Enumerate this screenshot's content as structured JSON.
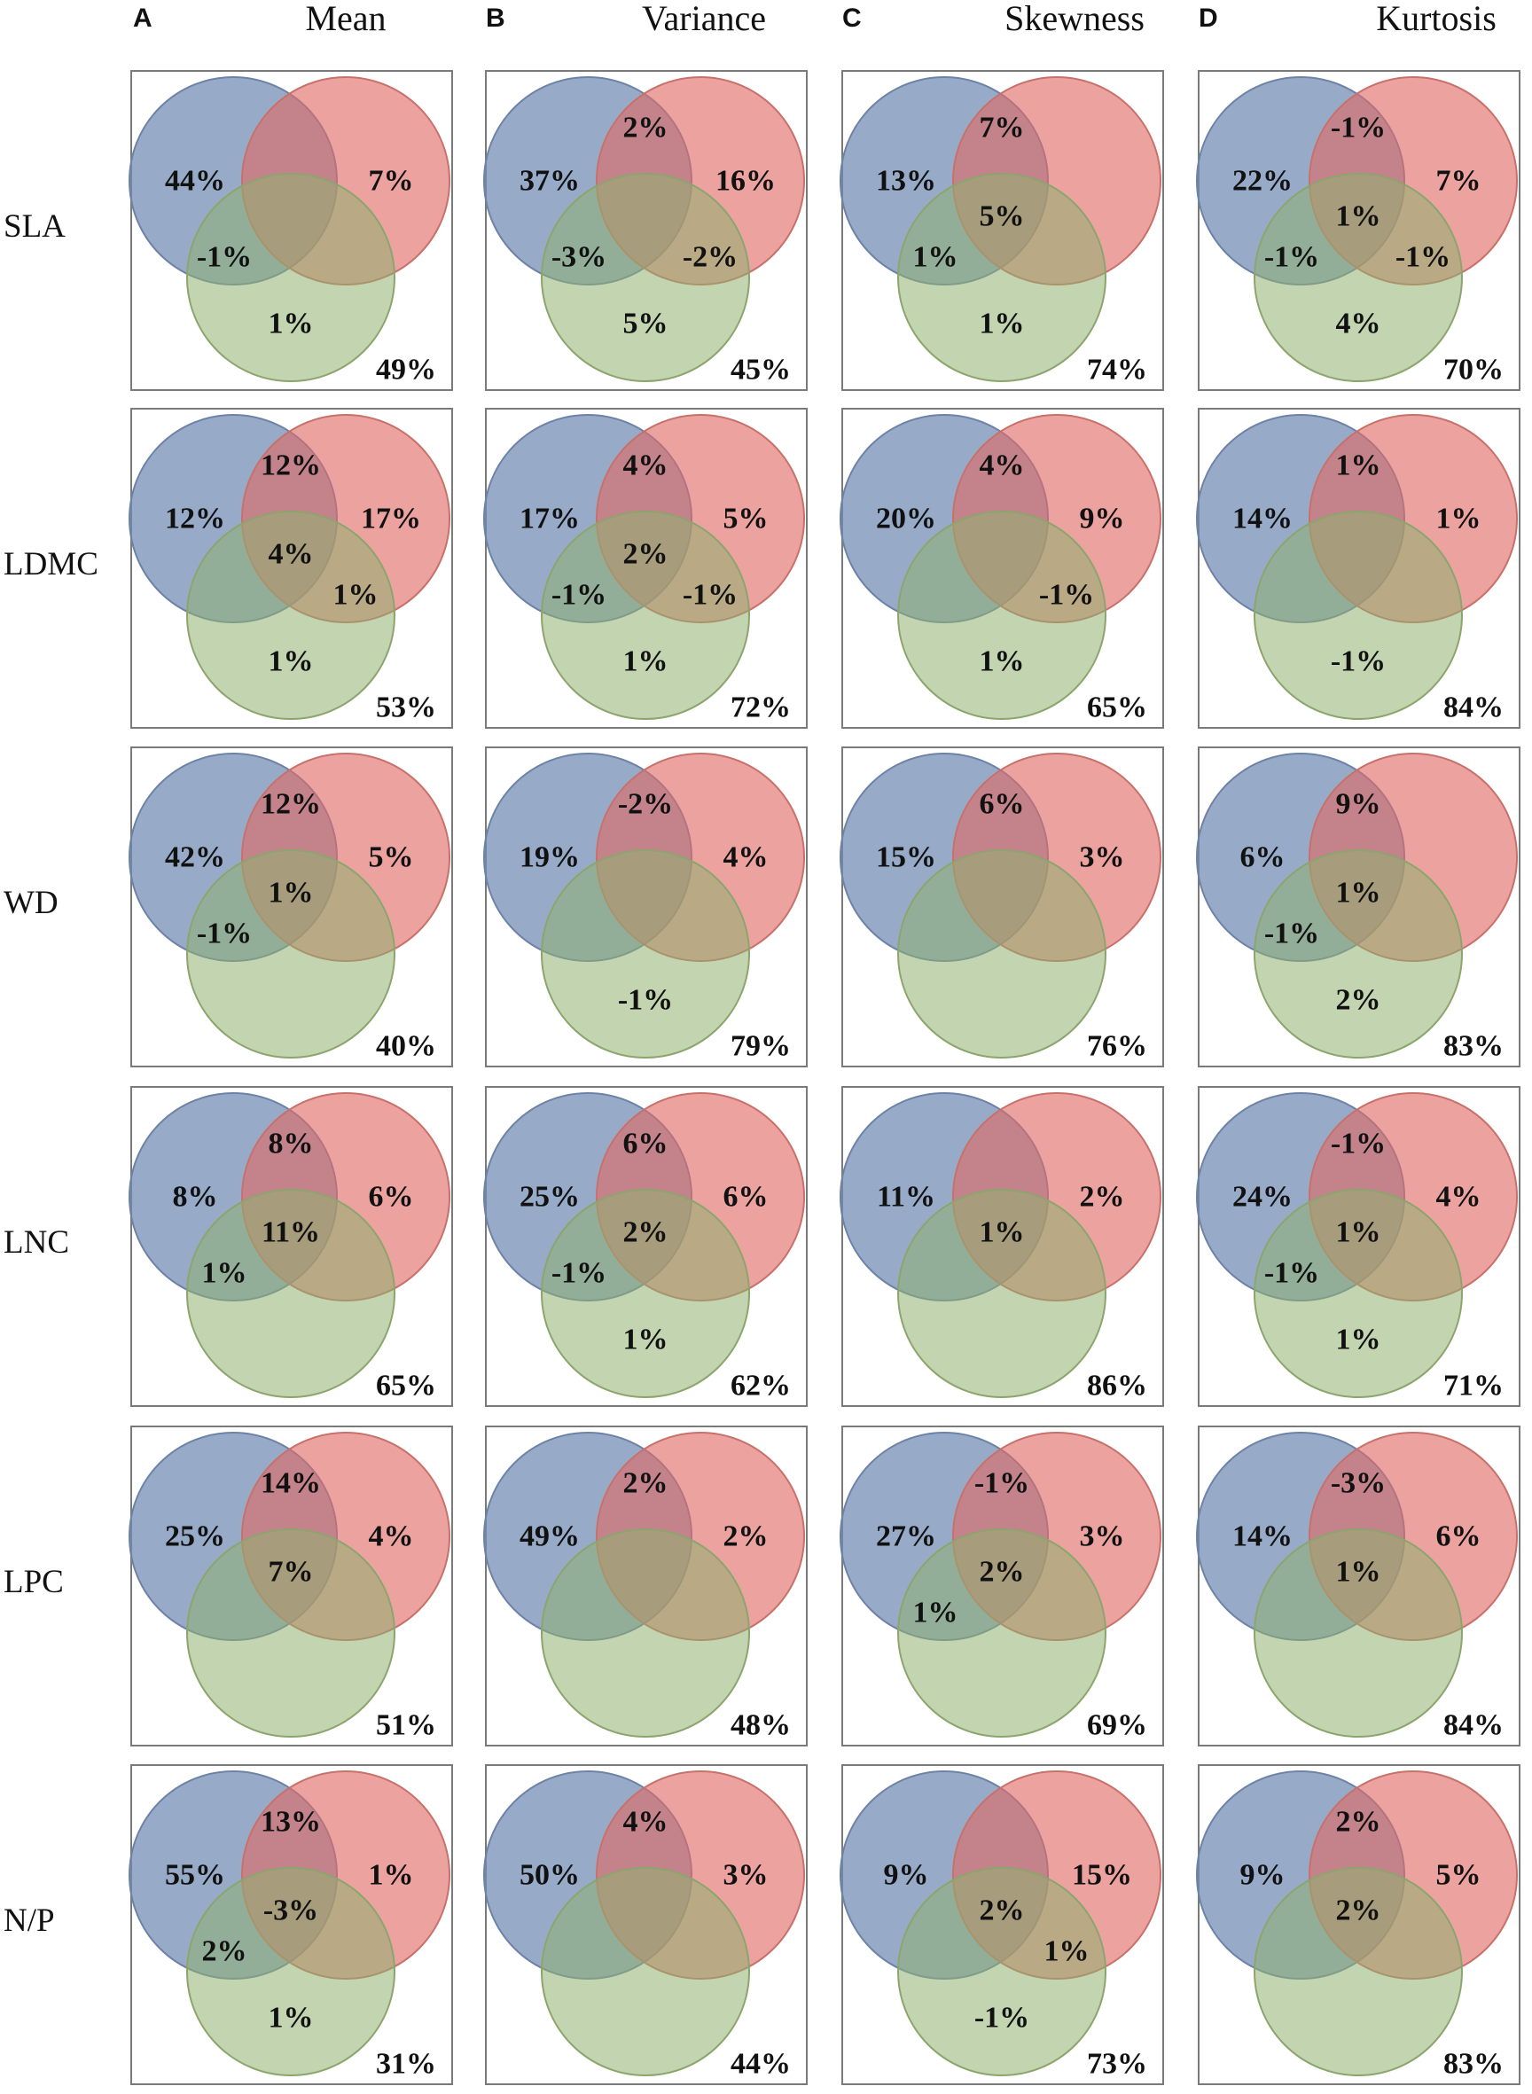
{
  "colors": {
    "blue": "#6f8ab4",
    "red": "#e06a66",
    "green": "#8fb170",
    "blue_stroke": "#6d82a6",
    "red_stroke": "#c8706a",
    "green_stroke": "#8ba56d"
  },
  "columns": [
    {
      "letter": "A",
      "title": "Mean"
    },
    {
      "letter": "B",
      "title": "Variance"
    },
    {
      "letter": "C",
      "title": "Skewness"
    },
    {
      "letter": "D",
      "title": "Kurtosis"
    }
  ],
  "rows": [
    "SLA",
    "LDMC",
    "WD",
    "LNC",
    "LPC",
    "N/P"
  ],
  "cells": [
    [
      {
        "blue_only": "44%",
        "red_only": "7%",
        "blue_red": "",
        "center": "",
        "blue_green": "-1%",
        "red_green": "",
        "green_only": "1%",
        "residual": "49%"
      },
      {
        "blue_only": "37%",
        "red_only": "16%",
        "blue_red": "2%",
        "center": "",
        "blue_green": "-3%",
        "red_green": "-2%",
        "green_only": "5%",
        "residual": "45%"
      },
      {
        "blue_only": "13%",
        "red_only": "",
        "blue_red": "7%",
        "center": "5%",
        "blue_green": "1%",
        "red_green": "",
        "green_only": "1%",
        "residual": "74%"
      },
      {
        "blue_only": "22%",
        "red_only": "7%",
        "blue_red": "-1%",
        "center": "1%",
        "blue_green": "-1%",
        "red_green": "-1%",
        "green_only": "4%",
        "residual": "70%"
      }
    ],
    [
      {
        "blue_only": "12%",
        "red_only": "17%",
        "blue_red": "12%",
        "center": "4%",
        "blue_green": "",
        "red_green": "1%",
        "green_only": "1%",
        "residual": "53%"
      },
      {
        "blue_only": "17%",
        "red_only": "5%",
        "blue_red": "4%",
        "center": "2%",
        "blue_green": "-1%",
        "red_green": "-1%",
        "green_only": "1%",
        "residual": "72%"
      },
      {
        "blue_only": "20%",
        "red_only": "9%",
        "blue_red": "4%",
        "center": "",
        "blue_green": "",
        "red_green": "-1%",
        "green_only": "1%",
        "residual": "65%"
      },
      {
        "blue_only": "14%",
        "red_only": "1%",
        "blue_red": "1%",
        "center": "",
        "blue_green": "",
        "red_green": "",
        "green_only": "-1%",
        "residual": "84%"
      }
    ],
    [
      {
        "blue_only": "42%",
        "red_only": "5%",
        "blue_red": "12%",
        "center": "1%",
        "blue_green": "-1%",
        "red_green": "",
        "green_only": "",
        "residual": "40%"
      },
      {
        "blue_only": "19%",
        "red_only": "4%",
        "blue_red": "-2%",
        "center": "",
        "blue_green": "",
        "red_green": "",
        "green_only": "-1%",
        "residual": "79%"
      },
      {
        "blue_only": "15%",
        "red_only": "3%",
        "blue_red": "6%",
        "center": "",
        "blue_green": "",
        "red_green": "",
        "green_only": "",
        "residual": "76%"
      },
      {
        "blue_only": "6%",
        "red_only": "",
        "blue_red": "9%",
        "center": "1%",
        "blue_green": "-1%",
        "red_green": "",
        "green_only": "2%",
        "residual": "83%"
      }
    ],
    [
      {
        "blue_only": "8%",
        "red_only": "6%",
        "blue_red": "8%",
        "center": "11%",
        "blue_green": "1%",
        "red_green": "",
        "green_only": "",
        "residual": "65%"
      },
      {
        "blue_only": "25%",
        "red_only": "6%",
        "blue_red": "6%",
        "center": "2%",
        "blue_green": "-1%",
        "red_green": "",
        "green_only": "1%",
        "residual": "62%"
      },
      {
        "blue_only": "11%",
        "red_only": "2%",
        "blue_red": "",
        "center": "1%",
        "blue_green": "",
        "red_green": "",
        "green_only": "",
        "residual": "86%"
      },
      {
        "blue_only": "24%",
        "red_only": "4%",
        "blue_red": "-1%",
        "center": "1%",
        "blue_green": "-1%",
        "red_green": "",
        "green_only": "1%",
        "residual": "71%"
      }
    ],
    [
      {
        "blue_only": "25%",
        "red_only": "4%",
        "blue_red": "14%",
        "center": "7%",
        "blue_green": "",
        "red_green": "",
        "green_only": "",
        "residual": "51%"
      },
      {
        "blue_only": "49%",
        "red_only": "2%",
        "blue_red": "2%",
        "center": "",
        "blue_green": "",
        "red_green": "",
        "green_only": "",
        "residual": "48%"
      },
      {
        "blue_only": "27%",
        "red_only": "3%",
        "blue_red": "-1%",
        "center": "2%",
        "blue_green": "1%",
        "red_green": "",
        "green_only": "",
        "residual": "69%"
      },
      {
        "blue_only": "14%",
        "red_only": "6%",
        "blue_red": "-3%",
        "center": "1%",
        "blue_green": "",
        "red_green": "",
        "green_only": "",
        "residual": "84%"
      }
    ],
    [
      {
        "blue_only": "55%",
        "red_only": "1%",
        "blue_red": "13%",
        "center": "-3%",
        "blue_green": "2%",
        "red_green": "",
        "green_only": "1%",
        "residual": "31%"
      },
      {
        "blue_only": "50%",
        "red_only": "3%",
        "blue_red": "4%",
        "center": "",
        "blue_green": "",
        "red_green": "",
        "green_only": "",
        "residual": "44%"
      },
      {
        "blue_only": "9%",
        "red_only": "15%",
        "blue_red": "",
        "center": "2%",
        "blue_green": "",
        "red_green": "1%",
        "green_only": "-1%",
        "residual": "73%"
      },
      {
        "blue_only": "9%",
        "red_only": "5%",
        "blue_red": "2%",
        "center": "2%",
        "blue_green": "",
        "red_green": "",
        "green_only": "",
        "residual": "83%"
      }
    ]
  ]
}
